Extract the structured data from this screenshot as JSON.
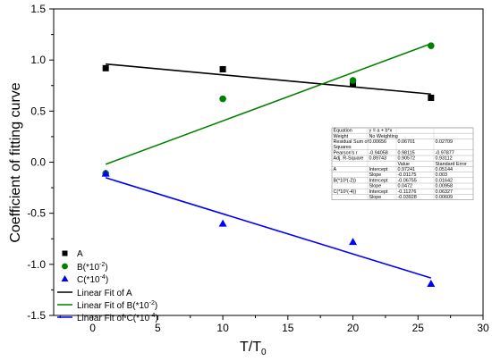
{
  "chart_data": {
    "type": "scatter",
    "xlabel": "T/T",
    "xlabel_sub": "0",
    "ylabel": "Coefficient of fitting curve",
    "xlim": [
      -3,
      30
    ],
    "ylim": [
      -1.5,
      1.5
    ],
    "x_ticks": [
      "0",
      "5",
      "10",
      "15",
      "20",
      "25",
      "30"
    ],
    "y_ticks": [
      "-1.5",
      "-1.0",
      "-0.5",
      "0.0",
      "0.5",
      "1.0",
      "1.5"
    ],
    "x_tick_values": [
      0,
      5,
      10,
      15,
      20,
      25,
      30
    ],
    "y_tick_values": [
      -1.5,
      -1.0,
      -0.5,
      0.0,
      0.5,
      1.0,
      1.5
    ],
    "series": [
      {
        "name": "A",
        "marker": "square",
        "color": "#000000",
        "x": [
          1,
          10,
          20,
          26
        ],
        "y": [
          0.92,
          0.91,
          0.77,
          0.63
        ]
      },
      {
        "name": "B(*10",
        "name_sup": "-2",
        "name_tail": ")",
        "marker": "circle",
        "color": "#008000",
        "x": [
          1,
          10,
          20,
          26
        ],
        "y": [
          -0.11,
          0.62,
          0.8,
          1.14
        ]
      },
      {
        "name": "C(*10",
        "name_sup": "-4",
        "name_tail": ")",
        "marker": "triangle",
        "color": "#0000ff",
        "x": [
          1,
          10,
          20,
          26
        ],
        "y": [
          -0.11,
          -0.6,
          -0.78,
          -1.19
        ]
      }
    ],
    "fits": [
      {
        "name": "Linear Fit of A",
        "color": "#000000",
        "intercept": 0.97241,
        "slope": -0.01175,
        "x_range": [
          1,
          26
        ]
      },
      {
        "name": "Linear Fit of B(*10",
        "name_sup": "-2",
        "name_tail": ")",
        "color": "#008000",
        "intercept": -0.06755,
        "slope": 0.0472,
        "x_range": [
          1,
          26
        ]
      },
      {
        "name": "Linear Fit of C(*10",
        "name_sup": "-4",
        "name_tail": ")",
        "color": "#0000ff",
        "intercept": -0.11276,
        "slope": -0.03928,
        "x_range": [
          1,
          26
        ]
      }
    ],
    "legend": "bottom-left",
    "grid": false
  },
  "stats_table": {
    "rows1": [
      [
        "Equation",
        "y = a + b*x",
        "",
        ""
      ],
      [
        "Weight",
        "No Weighting",
        "",
        ""
      ],
      [
        "Residual Sum of Squares",
        "0.00656",
        "0.06701",
        "0.02709"
      ],
      [
        "Pearson's r",
        "-0.94058",
        "0.98115",
        "-0.97877"
      ],
      [
        "Adj. R-Square",
        "0.89743",
        "0.90572",
        "0.93112"
      ]
    ],
    "header2": [
      "",
      "",
      "Value",
      "Standard Error"
    ],
    "rows2": [
      [
        "A",
        "Intercept",
        "0.97241",
        "0.05144"
      ],
      [
        "",
        "Slope",
        "-0.01175",
        "0.003"
      ],
      [
        "B(*10²(-2))",
        "Intercept",
        "-0.06755",
        "0.01642"
      ],
      [
        "",
        "Slope",
        "0.0472",
        "0.00958"
      ],
      [
        "C(*10²(-4))",
        "Intercept",
        "-0.11276",
        "0.06327"
      ],
      [
        "",
        "Slope",
        "-0.03928",
        "0.00609"
      ]
    ]
  }
}
